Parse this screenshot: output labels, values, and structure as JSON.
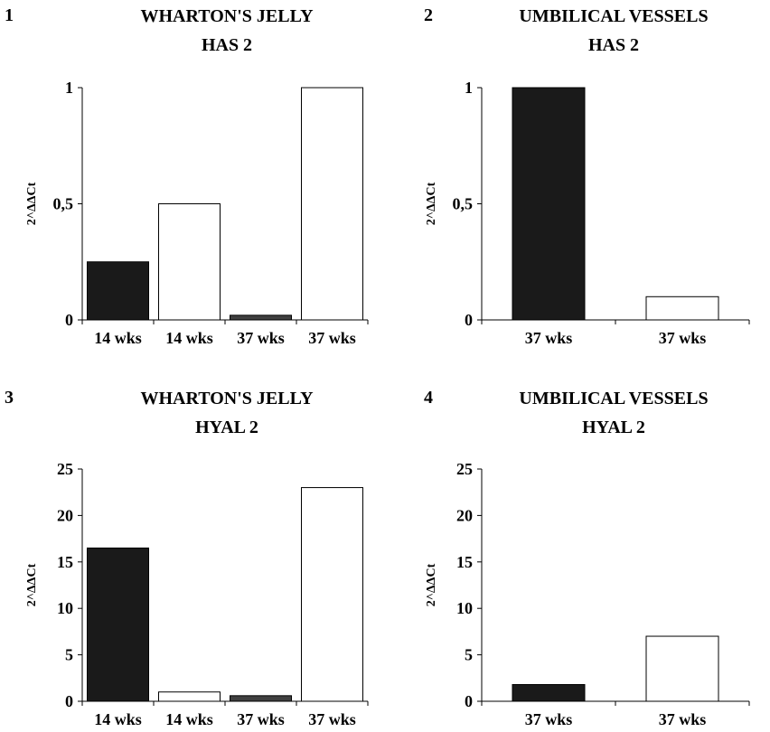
{
  "chart_data": [
    {
      "panel_number": "1",
      "title_lines": [
        "WHARTON'S JELLY",
        "HAS 2"
      ],
      "type": "bar",
      "ylabel": "2^ΔΔCt",
      "ylim": [
        0,
        1
      ],
      "yticks": [
        {
          "value": 0,
          "label": "0"
        },
        {
          "value": 0.5,
          "label": "0,5"
        },
        {
          "value": 1,
          "label": "1"
        }
      ],
      "categories": [
        "14 wks",
        "14 wks",
        "37 wks",
        "37 wks"
      ],
      "values": [
        0.25,
        0.5,
        0.02,
        1.0
      ],
      "colors": [
        "#1a1a1a",
        "#ffffff",
        "#404040",
        "#ffffff"
      ],
      "grid": false
    },
    {
      "panel_number": "2",
      "title_lines": [
        "UMBILICAL VESSELS",
        "HAS 2"
      ],
      "type": "bar",
      "ylabel": "2^ΔΔCt",
      "ylim": [
        0,
        1
      ],
      "yticks": [
        {
          "value": 0,
          "label": "0"
        },
        {
          "value": 0.5,
          "label": "0,5"
        },
        {
          "value": 1,
          "label": "1"
        }
      ],
      "categories": [
        "37 wks",
        "37 wks"
      ],
      "values": [
        1.0,
        0.1
      ],
      "colors": [
        "#1a1a1a",
        "#ffffff"
      ],
      "grid": false
    },
    {
      "panel_number": "3",
      "title_lines": [
        "WHARTON'S JELLY",
        "HYAL 2"
      ],
      "type": "bar",
      "ylabel": "2^ΔΔCt",
      "ylim": [
        0,
        25
      ],
      "yticks": [
        {
          "value": 0,
          "label": "0"
        },
        {
          "value": 5,
          "label": "5"
        },
        {
          "value": 10,
          "label": "10"
        },
        {
          "value": 15,
          "label": "15"
        },
        {
          "value": 20,
          "label": "20"
        },
        {
          "value": 25,
          "label": "25"
        }
      ],
      "categories": [
        "14 wks",
        "14 wks",
        "37 wks",
        "37 wks"
      ],
      "values": [
        16.5,
        1.0,
        0.6,
        23.0
      ],
      "colors": [
        "#1a1a1a",
        "#ffffff",
        "#404040",
        "#ffffff"
      ],
      "grid": false
    },
    {
      "panel_number": "4",
      "title_lines": [
        "UMBILICAL VESSELS",
        "HYAL 2"
      ],
      "type": "bar",
      "ylabel": "2^ΔΔCt",
      "ylim": [
        0,
        25
      ],
      "yticks": [
        {
          "value": 0,
          "label": "0"
        },
        {
          "value": 5,
          "label": "5"
        },
        {
          "value": 10,
          "label": "10"
        },
        {
          "value": 15,
          "label": "15"
        },
        {
          "value": 20,
          "label": "20"
        },
        {
          "value": 25,
          "label": "25"
        }
      ],
      "categories": [
        "37 wks",
        "37 wks"
      ],
      "values": [
        1.8,
        7.0
      ],
      "colors": [
        "#1a1a1a",
        "#ffffff"
      ],
      "grid": false
    }
  ]
}
